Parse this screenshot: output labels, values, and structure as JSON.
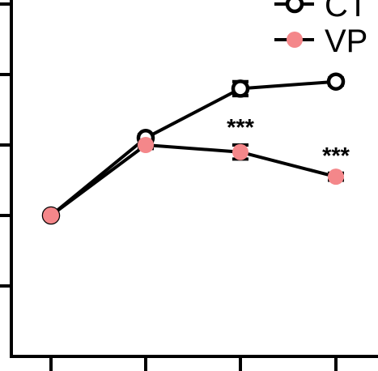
{
  "chart_data": {
    "type": "line",
    "title": "",
    "xlabel": "",
    "ylabel": "",
    "x": [
      1,
      2,
      3,
      4
    ],
    "ylim": [
      0,
      5
    ],
    "y_ticks": [
      1,
      2,
      3,
      4,
      5
    ],
    "grid": false,
    "legend_placement": "top-right",
    "series": [
      {
        "name": "CT",
        "marker": "open-circle",
        "color": "#000000",
        "values": [
          2.0,
          3.1,
          3.8,
          3.9
        ],
        "errors": [
          0.0,
          0.05,
          0.1,
          0.05
        ]
      },
      {
        "name": "VP",
        "marker": "filled-circle",
        "color": "#f4878a",
        "values": [
          2.0,
          3.0,
          2.9,
          2.55
        ],
        "errors": [
          0.0,
          0.05,
          0.1,
          0.05
        ]
      }
    ],
    "annotations": [
      {
        "x": 3,
        "text": "***"
      },
      {
        "x": 4,
        "text": "***"
      }
    ]
  }
}
